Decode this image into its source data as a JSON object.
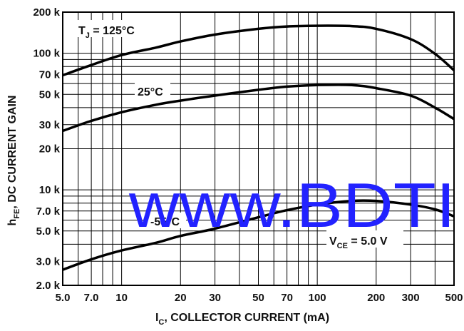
{
  "chart_data": {
    "type": "line",
    "xscale": "log",
    "yscale": "log",
    "xlim": [
      5,
      500
    ],
    "ylim": [
      2000,
      200000
    ],
    "grid": true,
    "xlabel": {
      "main": "I",
      "sub": "C",
      "rest": ", COLLECTOR CURRENT (mA)"
    },
    "ylabel": {
      "main": "h",
      "sub": "FE",
      "rest": ", DC CURRENT GAIN"
    },
    "x_ticks": [
      {
        "value": 5,
        "label": "5.0"
      },
      {
        "value": 7,
        "label": "7.0"
      },
      {
        "value": 10,
        "label": "10"
      },
      {
        "value": 20,
        "label": "20"
      },
      {
        "value": 30,
        "label": "30"
      },
      {
        "value": 50,
        "label": "50"
      },
      {
        "value": 70,
        "label": "70"
      },
      {
        "value": 100,
        "label": "100"
      },
      {
        "value": 200,
        "label": "200"
      },
      {
        "value": 300,
        "label": "300"
      },
      {
        "value": 500,
        "label": "500"
      }
    ],
    "y_ticks": [
      {
        "value": 2000,
        "label": "2.0 k"
      },
      {
        "value": 3000,
        "label": "3.0 k"
      },
      {
        "value": 5000,
        "label": "5.0 k"
      },
      {
        "value": 7000,
        "label": "7.0 k"
      },
      {
        "value": 10000,
        "label": "10 k"
      },
      {
        "value": 20000,
        "label": "20 k"
      },
      {
        "value": 30000,
        "label": "30 k"
      },
      {
        "value": 50000,
        "label": "50 k"
      },
      {
        "value": 70000,
        "label": "70 k"
      },
      {
        "value": 100000,
        "label": "100 k"
      },
      {
        "value": 200000,
        "label": "200 k"
      }
    ],
    "series": [
      {
        "name": "125°C",
        "label": {
          "pre": "T",
          "sub": "J",
          "post": " = 125°C"
        },
        "x": [
          5,
          7,
          10,
          15,
          20,
          30,
          50,
          70,
          100,
          150,
          200,
          300,
          400,
          500
        ],
        "y": [
          69000,
          82000,
          97000,
          110000,
          122000,
          137000,
          151000,
          157000,
          159000,
          158000,
          151000,
          127000,
          99000,
          75000
        ]
      },
      {
        "name": "25°C",
        "label": {
          "pre": "25°C",
          "sub": "",
          "post": ""
        },
        "x": [
          5,
          7,
          10,
          15,
          20,
          30,
          50,
          70,
          100,
          150,
          200,
          300,
          400,
          500
        ],
        "y": [
          27000,
          32000,
          37000,
          42000,
          45000,
          49000,
          54000,
          57000,
          58500,
          58500,
          55500,
          49000,
          40000,
          33000
        ]
      },
      {
        "name": "-55°C",
        "label": {
          "pre": "-55°C",
          "sub": "",
          "post": ""
        },
        "x": [
          5,
          7,
          10,
          15,
          20,
          30,
          50,
          70,
          100,
          150,
          200,
          300,
          400,
          500
        ],
        "y": [
          2600,
          3100,
          3600,
          4100,
          4600,
          5200,
          6300,
          7100,
          7800,
          8300,
          8300,
          7800,
          7200,
          6400
        ]
      }
    ],
    "annotations": [
      {
        "pre": "V",
        "sub": "CE",
        "post": " = 5.0 V"
      }
    ]
  },
  "watermark": "www.BDTI"
}
